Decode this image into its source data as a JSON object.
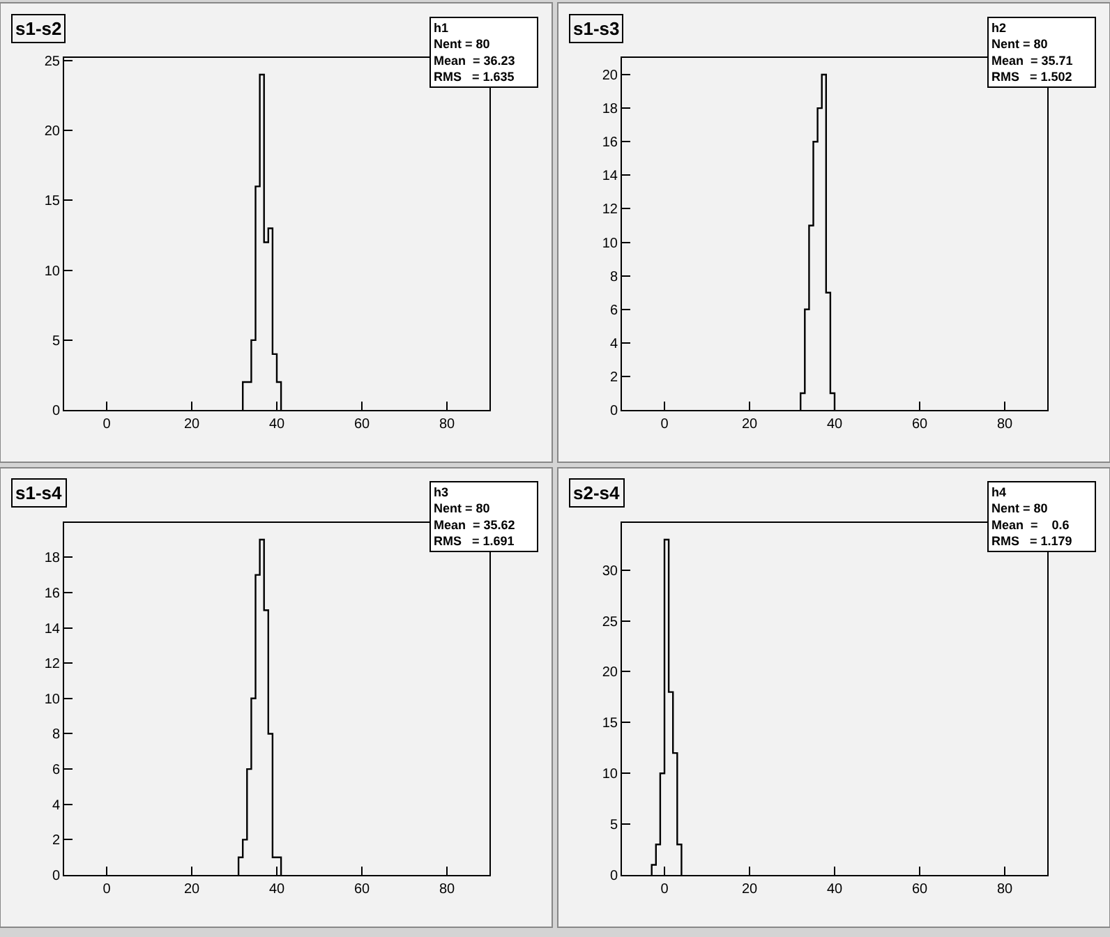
{
  "chart_data": [
    {
      "type": "histogram",
      "title": "s1-s2",
      "annotations": [
        "h1",
        "Nent = 80",
        "Mean  = 36.23",
        "RMS   = 1.635"
      ],
      "bins": [
        32,
        33,
        34,
        35,
        36,
        37,
        38,
        39,
        40,
        41
      ],
      "values": [
        2,
        2,
        5,
        16,
        24,
        12,
        13,
        4,
        2
      ],
      "color": "#000000",
      "xlim": [
        -10,
        90
      ],
      "xticks": [
        0,
        20,
        40,
        60,
        80
      ],
      "ylim": [
        0,
        25.2
      ],
      "yticks": [
        0,
        5,
        10,
        15,
        20,
        25
      ],
      "grid": false
    },
    {
      "type": "histogram",
      "title": "s1-s3",
      "annotations": [
        "h2",
        "Nent = 80",
        "Mean  = 35.71",
        "RMS   = 1.502"
      ],
      "bins": [
        32,
        33,
        34,
        35,
        36,
        37,
        38,
        39,
        40
      ],
      "values": [
        1,
        6,
        11,
        16,
        18,
        20,
        7,
        1
      ],
      "color": "#000000",
      "xlim": [
        -10,
        90
      ],
      "xticks": [
        0,
        20,
        40,
        60,
        80
      ],
      "ylim": [
        0,
        21
      ],
      "yticks": [
        0,
        2,
        4,
        6,
        8,
        10,
        12,
        14,
        16,
        18,
        20
      ],
      "grid": false
    },
    {
      "type": "histogram",
      "title": "s1-s4",
      "annotations": [
        "h3",
        "Nent = 80",
        "Mean  = 35.62",
        "RMS   = 1.691"
      ],
      "bins": [
        31,
        32,
        33,
        34,
        35,
        36,
        37,
        38,
        39,
        40,
        41
      ],
      "values": [
        1,
        2,
        6,
        10,
        17,
        19,
        15,
        8,
        1,
        1
      ],
      "color": "#000000",
      "xlim": [
        -10,
        90
      ],
      "xticks": [
        0,
        20,
        40,
        60,
        80
      ],
      "ylim": [
        0,
        19.95
      ],
      "yticks": [
        0,
        2,
        4,
        6,
        8,
        10,
        12,
        14,
        16,
        18
      ],
      "grid": false
    },
    {
      "type": "histogram",
      "title": "s2-s4",
      "annotations": [
        "h4",
        "Nent = 80",
        "Mean  =    0.6",
        "RMS   = 1.179"
      ],
      "bins": [
        -3,
        -2,
        -1,
        0,
        1,
        2,
        3,
        4
      ],
      "values": [
        1,
        3,
        10,
        33,
        18,
        12,
        3
      ],
      "color": "#000000",
      "xlim": [
        -10,
        90
      ],
      "xticks": [
        0,
        20,
        40,
        60,
        80
      ],
      "ylim": [
        0,
        34.65
      ],
      "yticks": [
        0,
        5,
        10,
        15,
        20,
        25,
        30
      ],
      "grid": false
    }
  ]
}
